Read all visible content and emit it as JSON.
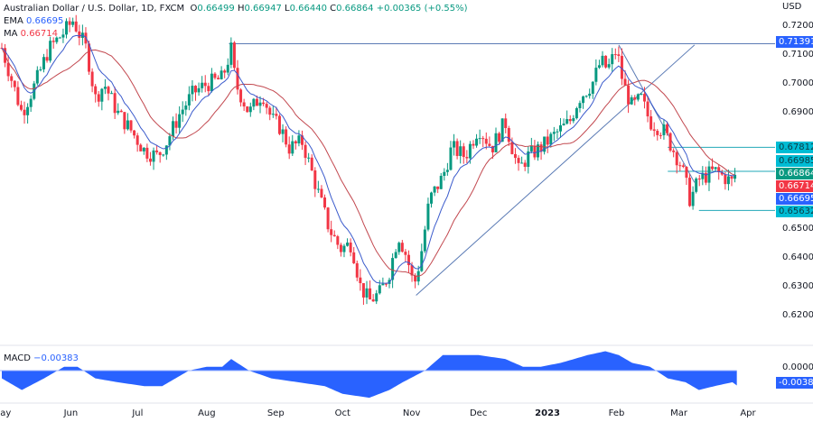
{
  "header": {
    "symbol": "Australian Dollar / U.S. Dollar, 1D, FXCM",
    "o_label": "O",
    "o": "0.66499",
    "h_label": "H",
    "h": "0.66947",
    "l_label": "L",
    "l": "0.66440",
    "c_label": "C",
    "c": "0.66864",
    "change": "+0.00365 (+0.55%)"
  },
  "indicators": {
    "ema_label": "EMA",
    "ema": "0.66695",
    "ma_label": "MA",
    "ma": "0.66714",
    "macd_label": "MACD",
    "macd": "−0.00383"
  },
  "axis": {
    "currency": "USD",
    "price_ticks": [
      "0.72000",
      "0.71000",
      "0.70000",
      "0.69000",
      "0.65000",
      "0.64000",
      "0.63000",
      "0.62000"
    ],
    "macd_ticks": [
      "0.00000"
    ],
    "months": [
      "May",
      "Jun",
      "Jul",
      "Aug",
      "Sep",
      "Oct",
      "Nov",
      "Dec",
      "2023",
      "Feb",
      "Mar",
      "Apr"
    ]
  },
  "price_tags": [
    {
      "text": "0.71391",
      "color": "#2962ff"
    },
    {
      "text": "0.67812",
      "color": "#00bcd4"
    },
    {
      "text": "0.66985",
      "color": "#00bcd4"
    },
    {
      "text": "0.66864",
      "color": "#089981"
    },
    {
      "text": "0.66714",
      "color": "#f23645"
    },
    {
      "text": "0.66695",
      "color": "#2962ff"
    },
    {
      "text": "0.65632",
      "color": "#00bcd4"
    }
  ],
  "macd_tag": {
    "text": "-0.00383",
    "color": "#2962ff"
  },
  "chart_data": {
    "type": "candlestick",
    "title": "Australian Dollar / U.S. Dollar, 1D, FXCM",
    "x_unit": "days since 2022-05-01",
    "ylim": [
      0.615,
      0.725
    ],
    "closes": [
      [
        1,
        0.71
      ],
      [
        5,
        0.7
      ],
      [
        9,
        0.69
      ],
      [
        15,
        0.7
      ],
      [
        21,
        0.712
      ],
      [
        28,
        0.718
      ],
      [
        32,
        0.722
      ],
      [
        38,
        0.712
      ],
      [
        42,
        0.695
      ],
      [
        46,
        0.7
      ],
      [
        52,
        0.69
      ],
      [
        58,
        0.684
      ],
      [
        64,
        0.677
      ],
      [
        70,
        0.675
      ],
      [
        74,
        0.68
      ],
      [
        80,
        0.69
      ],
      [
        86,
        0.697
      ],
      [
        92,
        0.7
      ],
      [
        99,
        0.702
      ],
      [
        103,
        0.712
      ],
      [
        105,
        0.7
      ],
      [
        111,
        0.69
      ],
      [
        117,
        0.697
      ],
      [
        121,
        0.688
      ],
      [
        125,
        0.685
      ],
      [
        129,
        0.678
      ],
      [
        135,
        0.68
      ],
      [
        139,
        0.67
      ],
      [
        143,
        0.66
      ],
      [
        147,
        0.65
      ],
      [
        152,
        0.643
      ],
      [
        157,
        0.645
      ],
      [
        161,
        0.63
      ],
      [
        165,
        0.625
      ],
      [
        170,
        0.628
      ],
      [
        174,
        0.635
      ],
      [
        178,
        0.648
      ],
      [
        182,
        0.64
      ],
      [
        185,
        0.63
      ],
      [
        188,
        0.64
      ],
      [
        192,
        0.66
      ],
      [
        198,
        0.668
      ],
      [
        202,
        0.678
      ],
      [
        208,
        0.675
      ],
      [
        214,
        0.685
      ],
      [
        220,
        0.678
      ],
      [
        226,
        0.687
      ],
      [
        232,
        0.67
      ],
      [
        236,
        0.675
      ],
      [
        242,
        0.678
      ],
      [
        249,
        0.683
      ],
      [
        255,
        0.687
      ],
      [
        259,
        0.695
      ],
      [
        265,
        0.7
      ],
      [
        269,
        0.708
      ],
      [
        272,
        0.705
      ],
      [
        276,
        0.712
      ],
      [
        279,
        0.7
      ],
      [
        283,
        0.692
      ],
      [
        287,
        0.695
      ],
      [
        291,
        0.687
      ],
      [
        297,
        0.684
      ],
      [
        301,
        0.678
      ],
      [
        305,
        0.672
      ],
      [
        309,
        0.66
      ],
      [
        313,
        0.667
      ],
      [
        320,
        0.67
      ],
      [
        324,
        0.668
      ],
      [
        328,
        0.666
      ],
      [
        330,
        0.66864
      ]
    ],
    "macd": [
      [
        0,
        -0.002
      ],
      [
        9,
        -0.005
      ],
      [
        19,
        -0.002
      ],
      [
        28,
        0.001
      ],
      [
        34,
        0.001
      ],
      [
        42,
        -0.002
      ],
      [
        52,
        -0.003
      ],
      [
        64,
        -0.004
      ],
      [
        72,
        -0.004
      ],
      [
        84,
        0.0
      ],
      [
        92,
        0.001
      ],
      [
        99,
        0.001
      ],
      [
        103,
        0.003
      ],
      [
        111,
        0.0
      ],
      [
        121,
        -0.002
      ],
      [
        133,
        -0.003
      ],
      [
        145,
        -0.004
      ],
      [
        153,
        -0.006
      ],
      [
        165,
        -0.007
      ],
      [
        174,
        -0.005
      ],
      [
        180,
        -0.003
      ],
      [
        190,
        0.0
      ],
      [
        198,
        0.004
      ],
      [
        206,
        0.004
      ],
      [
        214,
        0.004
      ],
      [
        226,
        0.003
      ],
      [
        234,
        0.001
      ],
      [
        242,
        0.001
      ],
      [
        251,
        0.002
      ],
      [
        263,
        0.004
      ],
      [
        271,
        0.005
      ],
      [
        277,
        0.004
      ],
      [
        283,
        0.002
      ],
      [
        291,
        0.001
      ],
      [
        299,
        -0.002
      ],
      [
        307,
        -0.003
      ],
      [
        313,
        -0.005
      ],
      [
        320,
        -0.004
      ],
      [
        328,
        -0.003
      ],
      [
        330,
        -0.00383
      ]
    ],
    "hlines": [
      {
        "y": 0.71391,
        "from": 102
      },
      {
        "y": 0.67812,
        "from": 299
      },
      {
        "y": 0.66985,
        "from": 299
      },
      {
        "y": 0.65632,
        "from": 313
      }
    ],
    "trendlines": [
      [
        [
          186,
          0.627
        ],
        [
          311,
          0.7135
        ]
      ],
      [
        [
          277,
          0.7135
        ],
        [
          311,
          0.666
        ]
      ]
    ],
    "month_days": [
      0,
      31,
      61,
      92,
      123,
      153,
      184,
      214,
      245,
      276,
      304,
      335
    ]
  }
}
